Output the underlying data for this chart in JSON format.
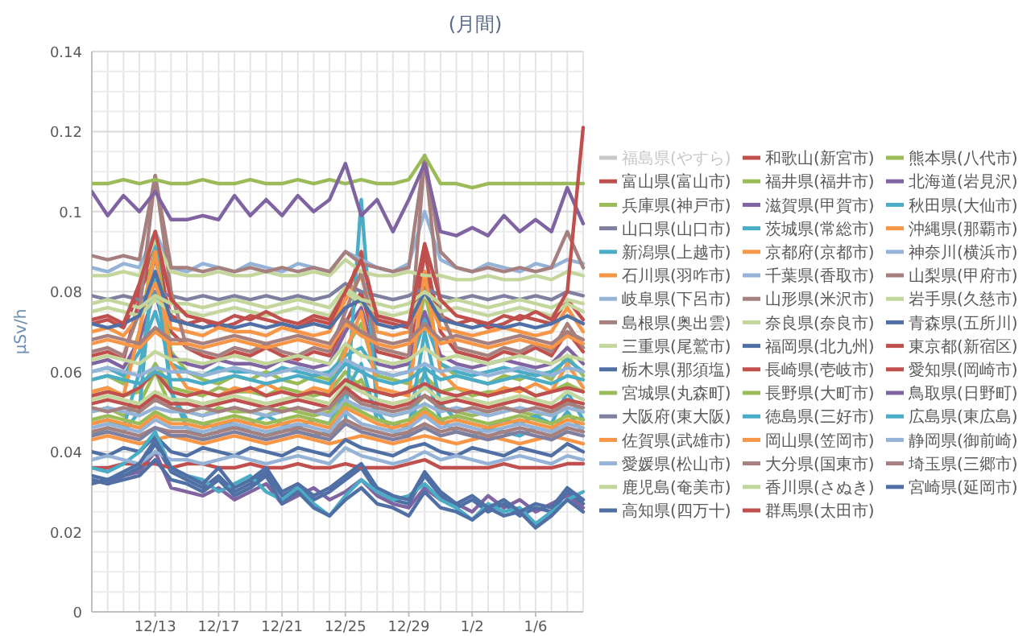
{
  "chart_data": {
    "type": "line",
    "title": "(月間)",
    "ylabel": "μSv/h",
    "ylim": [
      0,
      0.14
    ],
    "yticks": [
      0,
      0.02,
      0.04,
      0.06,
      0.08,
      0.1,
      0.12,
      0.14
    ],
    "categories": [
      null,
      null,
      null,
      null,
      "12/13",
      null,
      null,
      null,
      "12/17",
      null,
      null,
      null,
      "12/21",
      null,
      null,
      null,
      "12/25",
      null,
      null,
      null,
      "12/29",
      null,
      null,
      null,
      "1/2",
      null,
      null,
      null,
      "1/6",
      null,
      null,
      null
    ],
    "grid": true,
    "legend": "right",
    "line_style": "solid",
    "series": [
      {
        "name": "福島県(やすら)",
        "color": "#c8c8c8",
        "values": [
          null,
          null,
          null,
          null,
          null,
          null,
          null,
          null,
          null,
          null,
          null,
          null,
          null,
          null,
          null,
          null,
          null,
          null,
          null,
          null,
          null,
          null,
          null,
          null,
          null,
          null,
          null,
          null,
          null,
          null,
          null,
          null
        ]
      },
      {
        "name": "和歌山(新宮市)",
        "color": "#c0504d",
        "values": [
          0.072,
          0.073,
          0.071,
          0.08,
          0.088,
          0.074,
          0.072,
          0.073,
          0.071,
          0.072,
          0.074,
          0.073,
          0.072,
          0.071,
          0.073,
          0.072,
          0.078,
          0.09,
          0.073,
          0.072,
          0.071,
          0.085,
          0.074,
          0.072,
          0.073,
          0.071,
          0.072,
          0.074,
          0.073,
          0.072,
          0.078,
          0.073
        ]
      },
      {
        "name": "熊本県(八代市)",
        "color": "#9bbb59",
        "values": [
          0.055,
          0.056,
          0.054,
          0.055,
          0.062,
          0.056,
          0.055,
          0.054,
          0.056,
          0.055,
          0.055,
          0.054,
          0.056,
          0.055,
          0.054,
          0.055,
          0.06,
          0.056,
          0.055,
          0.054,
          0.055,
          0.059,
          0.055,
          0.056,
          0.054,
          0.055,
          0.055,
          0.056,
          0.054,
          0.055,
          0.057,
          0.055
        ]
      },
      {
        "name": "富山県(富山市)",
        "color": "#c0504d",
        "values": [
          0.064,
          0.065,
          0.063,
          0.078,
          0.095,
          0.07,
          0.066,
          0.064,
          0.063,
          0.065,
          0.064,
          0.066,
          0.064,
          0.063,
          0.065,
          0.064,
          0.072,
          0.08,
          0.065,
          0.064,
          0.063,
          0.09,
          0.07,
          0.065,
          0.064,
          0.063,
          0.065,
          0.064,
          0.066,
          0.064,
          0.07,
          0.065
        ]
      },
      {
        "name": "福井県(福井市)",
        "color": "#9bbb59",
        "values": [
          0.058,
          0.059,
          0.057,
          0.07,
          0.092,
          0.065,
          0.06,
          0.058,
          0.057,
          0.059,
          0.058,
          0.06,
          0.058,
          0.057,
          0.059,
          0.058,
          0.066,
          0.072,
          0.059,
          0.058,
          0.057,
          0.08,
          0.062,
          0.059,
          0.058,
          0.057,
          0.059,
          0.058,
          0.06,
          0.058,
          0.064,
          0.059
        ]
      },
      {
        "name": "北海道(岩見沢)",
        "color": "#8064a2",
        "values": [
          0.033,
          0.032,
          0.034,
          0.035,
          0.04,
          0.031,
          0.03,
          0.029,
          0.031,
          0.028,
          0.03,
          0.032,
          0.027,
          0.029,
          0.031,
          0.028,
          0.03,
          0.033,
          0.029,
          0.027,
          0.026,
          0.031,
          0.028,
          0.027,
          0.025,
          0.029,
          0.026,
          0.028,
          0.025,
          0.027,
          0.029,
          0.026
        ]
      },
      {
        "name": "兵庫県(神戸市)",
        "color": "#9bbb59",
        "values": [
          0.05,
          0.051,
          0.049,
          0.052,
          0.06,
          0.051,
          0.05,
          0.049,
          0.051,
          0.05,
          0.05,
          0.049,
          0.051,
          0.05,
          0.049,
          0.05,
          0.055,
          0.058,
          0.05,
          0.049,
          0.05,
          0.054,
          0.051,
          0.05,
          0.049,
          0.05,
          0.051,
          0.05,
          0.049,
          0.05,
          0.053,
          0.05
        ]
      },
      {
        "name": "滋賀県(甲賀市)",
        "color": "#8064a2",
        "values": [
          0.062,
          0.063,
          0.061,
          0.068,
          0.08,
          0.064,
          0.062,
          0.061,
          0.063,
          0.062,
          0.062,
          0.061,
          0.063,
          0.062,
          0.061,
          0.062,
          0.07,
          0.076,
          0.062,
          0.061,
          0.062,
          0.075,
          0.064,
          0.062,
          0.061,
          0.062,
          0.063,
          0.062,
          0.061,
          0.062,
          0.066,
          0.062
        ]
      },
      {
        "name": "秋田県(大仙市)",
        "color": "#4bacc6",
        "values": [
          0.044,
          0.046,
          0.045,
          0.05,
          0.093,
          0.055,
          0.046,
          0.044,
          0.045,
          0.047,
          0.045,
          0.044,
          0.046,
          0.045,
          0.044,
          0.045,
          0.048,
          0.103,
          0.05,
          0.045,
          0.044,
          0.06,
          0.048,
          0.045,
          0.044,
          0.046,
          0.045,
          0.044,
          0.046,
          0.045,
          0.05,
          0.045
        ]
      },
      {
        "name": "山口県(山口市)",
        "color": "#7f7f9f",
        "values": [
          0.079,
          0.078,
          0.079,
          0.078,
          0.08,
          0.079,
          0.078,
          0.079,
          0.078,
          0.079,
          0.078,
          0.079,
          0.078,
          0.079,
          0.078,
          0.079,
          0.082,
          0.08,
          0.079,
          0.078,
          0.079,
          0.081,
          0.079,
          0.078,
          0.079,
          0.078,
          0.079,
          0.078,
          0.079,
          0.078,
          0.08,
          0.079
        ]
      },
      {
        "name": "茨城県(常総市)",
        "color": "#4bacc6",
        "values": [
          0.06,
          0.061,
          0.059,
          0.065,
          0.075,
          0.062,
          0.06,
          0.059,
          0.061,
          0.06,
          0.06,
          0.059,
          0.061,
          0.06,
          0.059,
          0.06,
          0.064,
          0.066,
          0.06,
          0.059,
          0.06,
          0.073,
          0.062,
          0.06,
          0.059,
          0.06,
          0.061,
          0.06,
          0.059,
          0.06,
          0.063,
          0.06
        ]
      },
      {
        "name": "沖縄県(那覇市)",
        "color": "#f79646",
        "values": [
          0.043,
          0.044,
          0.043,
          0.042,
          0.043,
          0.044,
          0.043,
          0.042,
          0.043,
          0.044,
          0.043,
          0.042,
          0.043,
          0.044,
          0.043,
          0.042,
          0.043,
          0.044,
          0.043,
          0.042,
          0.043,
          0.044,
          0.043,
          0.042,
          0.043,
          0.044,
          0.043,
          0.042,
          0.043,
          0.044,
          0.043,
          0.042
        ]
      },
      {
        "name": "新潟県(上越市)",
        "color": "#4bacc6",
        "values": [
          0.047,
          0.048,
          0.046,
          0.06,
          0.085,
          0.055,
          0.048,
          0.047,
          0.046,
          0.048,
          0.047,
          0.049,
          0.047,
          0.046,
          0.048,
          0.047,
          0.055,
          0.062,
          0.048,
          0.047,
          0.046,
          0.07,
          0.052,
          0.048,
          0.047,
          0.046,
          0.048,
          0.047,
          0.049,
          0.047,
          0.055,
          0.048
        ]
      },
      {
        "name": "京都府(京都市)",
        "color": "#f79646",
        "values": [
          0.07,
          0.071,
          0.069,
          0.074,
          0.082,
          0.071,
          0.07,
          0.069,
          0.071,
          0.07,
          0.07,
          0.069,
          0.071,
          0.07,
          0.069,
          0.07,
          0.078,
          0.084,
          0.07,
          0.069,
          0.07,
          0.08,
          0.071,
          0.07,
          0.069,
          0.07,
          0.071,
          0.07,
          0.069,
          0.07,
          0.076,
          0.07
        ]
      },
      {
        "name": "神奈川(横浜市)",
        "color": "#95b3d7",
        "values": [
          0.05,
          0.051,
          0.05,
          0.049,
          0.051,
          0.05,
          0.05,
          0.049,
          0.05,
          0.051,
          0.05,
          0.049,
          0.05,
          0.051,
          0.05,
          0.049,
          0.053,
          0.051,
          0.05,
          0.049,
          0.05,
          0.052,
          0.05,
          0.051,
          0.05,
          0.049,
          0.05,
          0.051,
          0.05,
          0.049,
          0.051,
          0.05
        ]
      },
      {
        "name": "石川県(羽咋市)",
        "color": "#f79646",
        "values": [
          0.055,
          0.056,
          0.054,
          0.07,
          0.09,
          0.062,
          0.056,
          0.055,
          0.054,
          0.056,
          0.055,
          0.057,
          0.055,
          0.054,
          0.056,
          0.055,
          0.065,
          0.075,
          0.056,
          0.055,
          0.054,
          0.085,
          0.06,
          0.056,
          0.055,
          0.054,
          0.056,
          0.055,
          0.057,
          0.055,
          0.062,
          0.056
        ]
      },
      {
        "name": "千葉県(香取市)",
        "color": "#95b3d7",
        "values": [
          0.06,
          0.061,
          0.06,
          0.059,
          0.061,
          0.06,
          0.06,
          0.059,
          0.06,
          0.061,
          0.06,
          0.059,
          0.06,
          0.061,
          0.06,
          0.059,
          0.063,
          0.061,
          0.06,
          0.059,
          0.06,
          0.062,
          0.06,
          0.061,
          0.06,
          0.059,
          0.06,
          0.061,
          0.06,
          0.059,
          0.061,
          0.06
        ]
      },
      {
        "name": "山梨県(甲府市)",
        "color": "#a5807f",
        "values": [
          0.045,
          0.046,
          0.045,
          0.044,
          0.046,
          0.045,
          0.045,
          0.044,
          0.045,
          0.046,
          0.045,
          0.044,
          0.045,
          0.046,
          0.045,
          0.044,
          0.048,
          0.046,
          0.045,
          0.044,
          0.045,
          0.047,
          0.045,
          0.046,
          0.045,
          0.044,
          0.045,
          0.046,
          0.045,
          0.044,
          0.046,
          0.045
        ]
      },
      {
        "name": "岐阜県(下呂市)",
        "color": "#95b3d7",
        "values": [
          0.086,
          0.085,
          0.087,
          0.086,
          0.095,
          0.086,
          0.085,
          0.087,
          0.086,
          0.085,
          0.087,
          0.086,
          0.085,
          0.087,
          0.086,
          0.085,
          0.09,
          0.088,
          0.086,
          0.085,
          0.087,
          0.1,
          0.088,
          0.086,
          0.085,
          0.087,
          0.086,
          0.085,
          0.087,
          0.086,
          0.088,
          0.087
        ]
      },
      {
        "name": "山形県(米沢市)",
        "color": "#a5807f",
        "values": [
          0.065,
          0.066,
          0.064,
          0.075,
          0.109,
          0.08,
          0.066,
          0.065,
          0.064,
          0.066,
          0.065,
          0.067,
          0.065,
          0.064,
          0.066,
          0.065,
          0.075,
          0.085,
          0.066,
          0.065,
          0.064,
          0.114,
          0.075,
          0.066,
          0.065,
          0.064,
          0.066,
          0.065,
          0.067,
          0.065,
          0.072,
          0.066
        ]
      },
      {
        "name": "岩手県(久慈市)",
        "color": "#c3d69b",
        "values": [
          0.084,
          0.084,
          0.085,
          0.084,
          0.093,
          0.085,
          0.084,
          0.084,
          0.085,
          0.084,
          0.084,
          0.085,
          0.084,
          0.084,
          0.085,
          0.084,
          0.088,
          0.085,
          0.084,
          0.084,
          0.085,
          0.084,
          0.084,
          0.083,
          0.083,
          0.084,
          0.083,
          0.083,
          0.084,
          0.083,
          0.085,
          0.084
        ]
      },
      {
        "name": "島根県(奥出雲)",
        "color": "#a5807f",
        "values": [
          0.089,
          0.088,
          0.089,
          0.088,
          0.109,
          0.086,
          0.086,
          0.085,
          0.086,
          0.085,
          0.086,
          0.085,
          0.086,
          0.085,
          0.086,
          0.085,
          0.09,
          0.087,
          0.086,
          0.085,
          0.086,
          0.114,
          0.09,
          0.086,
          0.085,
          0.086,
          0.085,
          0.086,
          0.085,
          0.086,
          0.095,
          0.086
        ]
      },
      {
        "name": "奈良県(奈良市)",
        "color": "#c3d69b",
        "values": [
          0.053,
          0.054,
          0.053,
          0.052,
          0.055,
          0.053,
          0.053,
          0.052,
          0.053,
          0.054,
          0.053,
          0.052,
          0.053,
          0.054,
          0.053,
          0.052,
          0.057,
          0.055,
          0.053,
          0.052,
          0.053,
          0.056,
          0.053,
          0.054,
          0.053,
          0.052,
          0.053,
          0.054,
          0.053,
          0.052,
          0.055,
          0.053
        ]
      },
      {
        "name": "青森県(五所川)",
        "color": "#4f6fa5",
        "values": [
          0.032,
          0.033,
          0.034,
          0.036,
          0.042,
          0.035,
          0.033,
          0.031,
          0.034,
          0.03,
          0.032,
          0.035,
          0.029,
          0.031,
          0.028,
          0.03,
          0.033,
          0.036,
          0.03,
          0.028,
          0.027,
          0.034,
          0.029,
          0.026,
          0.028,
          0.025,
          0.027,
          0.024,
          0.026,
          0.025,
          0.03,
          0.027
        ]
      },
      {
        "name": "三重県(尾鷲市)",
        "color": "#c3d69b",
        "values": [
          0.075,
          0.076,
          0.075,
          0.074,
          0.078,
          0.075,
          0.075,
          0.074,
          0.075,
          0.076,
          0.075,
          0.074,
          0.075,
          0.076,
          0.075,
          0.074,
          0.08,
          0.077,
          0.075,
          0.074,
          0.075,
          0.079,
          0.075,
          0.076,
          0.075,
          0.074,
          0.075,
          0.076,
          0.075,
          0.074,
          0.077,
          0.075
        ]
      },
      {
        "name": "福岡県(北九州)",
        "color": "#4f6fa5",
        "values": [
          0.04,
          0.039,
          0.041,
          0.04,
          0.044,
          0.04,
          0.039,
          0.041,
          0.04,
          0.039,
          0.041,
          0.04,
          0.039,
          0.041,
          0.04,
          0.039,
          0.043,
          0.041,
          0.04,
          0.039,
          0.041,
          0.042,
          0.04,
          0.039,
          0.041,
          0.04,
          0.039,
          0.041,
          0.04,
          0.039,
          0.042,
          0.04
        ]
      },
      {
        "name": "東京都(新宿区)",
        "color": "#c0504d",
        "values": [
          0.054,
          0.055,
          0.054,
          0.056,
          0.06,
          0.055,
          0.054,
          0.055,
          0.054,
          0.055,
          0.056,
          0.054,
          0.055,
          0.054,
          0.055,
          0.054,
          0.058,
          0.056,
          0.055,
          0.054,
          0.055,
          0.057,
          0.055,
          0.054,
          0.055,
          0.054,
          0.055,
          0.056,
          0.054,
          0.055,
          0.056,
          0.055
        ]
      },
      {
        "name": "栃木県(那須塩)",
        "color": "#4f6fa5",
        "values": [
          0.072,
          0.071,
          0.072,
          0.074,
          0.085,
          0.073,
          0.072,
          0.071,
          0.072,
          0.071,
          0.072,
          0.071,
          0.072,
          0.071,
          0.072,
          0.071,
          0.076,
          0.078,
          0.072,
          0.071,
          0.072,
          0.08,
          0.073,
          0.072,
          0.071,
          0.072,
          0.071,
          0.072,
          0.071,
          0.072,
          0.074,
          0.072
        ]
      },
      {
        "name": "長崎県(壱岐市)",
        "color": "#c0504d",
        "values": [
          0.052,
          0.053,
          0.052,
          0.051,
          0.054,
          0.052,
          0.052,
          0.051,
          0.052,
          0.053,
          0.052,
          0.051,
          0.052,
          0.053,
          0.052,
          0.051,
          0.056,
          0.053,
          0.052,
          0.051,
          0.052,
          0.054,
          0.052,
          0.053,
          0.052,
          0.051,
          0.052,
          0.053,
          0.052,
          0.051,
          0.053,
          0.052
        ]
      },
      {
        "name": "愛知県(岡崎市)",
        "color": "#c0504d",
        "values": [
          0.036,
          0.036,
          0.037,
          0.037,
          0.037,
          0.036,
          0.037,
          0.037,
          0.036,
          0.036,
          0.037,
          0.036,
          0.036,
          0.037,
          0.036,
          0.036,
          0.037,
          0.036,
          0.036,
          0.036,
          0.037,
          0.038,
          0.036,
          0.036,
          0.036,
          0.036,
          0.037,
          0.036,
          0.036,
          0.036,
          0.037,
          0.037
        ]
      },
      {
        "name": "宮城県(丸森町)",
        "color": "#9bbb59",
        "values": [
          0.107,
          0.107,
          0.108,
          0.107,
          0.108,
          0.107,
          0.107,
          0.108,
          0.107,
          0.107,
          0.108,
          0.107,
          0.107,
          0.108,
          0.107,
          0.108,
          0.107,
          0.108,
          0.107,
          0.107,
          0.108,
          0.114,
          0.107,
          0.107,
          0.106,
          0.107,
          0.107,
          0.107,
          0.107,
          0.107,
          0.107,
          0.107
        ]
      },
      {
        "name": "長野県(大町市)",
        "color": "#9bbb59",
        "values": [
          0.048,
          0.049,
          0.048,
          0.047,
          0.05,
          0.048,
          0.048,
          0.047,
          0.048,
          0.049,
          0.048,
          0.047,
          0.048,
          0.049,
          0.048,
          0.047,
          0.052,
          0.05,
          0.048,
          0.047,
          0.048,
          0.051,
          0.048,
          0.049,
          0.048,
          0.047,
          0.048,
          0.049,
          0.048,
          0.047,
          0.049,
          0.048
        ]
      },
      {
        "name": "鳥取県(日野町)",
        "color": "#8064a2",
        "values": [
          0.105,
          0.099,
          0.104,
          0.1,
          0.105,
          0.098,
          0.098,
          0.099,
          0.098,
          0.104,
          0.099,
          0.103,
          0.099,
          0.104,
          0.1,
          0.103,
          0.112,
          0.099,
          0.103,
          0.095,
          0.103,
          0.112,
          0.095,
          0.094,
          0.096,
          0.094,
          0.099,
          0.095,
          0.098,
          0.095,
          0.106,
          0.097
        ]
      },
      {
        "name": "大阪府(東大阪)",
        "color": "#7f7f9f",
        "values": [
          0.044,
          0.045,
          0.044,
          0.043,
          0.046,
          0.044,
          0.044,
          0.043,
          0.044,
          0.045,
          0.044,
          0.043,
          0.044,
          0.045,
          0.044,
          0.043,
          0.047,
          0.045,
          0.044,
          0.043,
          0.044,
          0.046,
          0.044,
          0.045,
          0.044,
          0.043,
          0.044,
          0.045,
          0.044,
          0.043,
          0.045,
          0.044
        ]
      },
      {
        "name": "徳島県(三好市)",
        "color": "#4bacc6",
        "values": [
          0.036,
          0.035,
          0.037,
          0.04,
          0.045,
          0.036,
          0.034,
          0.033,
          0.03,
          0.032,
          0.034,
          0.03,
          0.028,
          0.031,
          0.027,
          0.024,
          0.029,
          0.033,
          0.03,
          0.028,
          0.029,
          0.032,
          0.028,
          0.026,
          0.023,
          0.027,
          0.025,
          0.026,
          0.022,
          0.025,
          0.028,
          0.03
        ]
      },
      {
        "name": "広島県(東広島)",
        "color": "#4bacc6",
        "values": [
          0.058,
          0.059,
          0.058,
          0.057,
          0.06,
          0.058,
          0.058,
          0.057,
          0.058,
          0.059,
          0.058,
          0.057,
          0.058,
          0.059,
          0.058,
          0.057,
          0.062,
          0.06,
          0.058,
          0.057,
          0.058,
          0.061,
          0.058,
          0.059,
          0.058,
          0.057,
          0.058,
          0.059,
          0.058,
          0.057,
          0.059,
          0.058
        ]
      },
      {
        "name": "佐賀県(武雄市)",
        "color": "#f79646",
        "values": [
          0.067,
          0.068,
          0.067,
          0.066,
          0.07,
          0.067,
          0.067,
          0.066,
          0.067,
          0.068,
          0.067,
          0.066,
          0.067,
          0.068,
          0.067,
          0.066,
          0.072,
          0.069,
          0.067,
          0.066,
          0.067,
          0.071,
          0.067,
          0.068,
          0.067,
          0.066,
          0.067,
          0.068,
          0.067,
          0.066,
          0.069,
          0.067
        ]
      },
      {
        "name": "岡山県(笠岡市)",
        "color": "#f79646",
        "values": [
          0.047,
          0.048,
          0.047,
          0.046,
          0.049,
          0.047,
          0.047,
          0.046,
          0.047,
          0.048,
          0.047,
          0.046,
          0.047,
          0.048,
          0.047,
          0.046,
          0.051,
          0.049,
          0.047,
          0.046,
          0.047,
          0.05,
          0.047,
          0.048,
          0.047,
          0.046,
          0.047,
          0.048,
          0.047,
          0.046,
          0.048,
          0.047
        ]
      },
      {
        "name": "静岡県(御前崎)",
        "color": "#95b3d7",
        "values": [
          0.038,
          0.039,
          0.038,
          0.037,
          0.04,
          0.038,
          0.038,
          0.037,
          0.038,
          0.039,
          0.038,
          0.037,
          0.038,
          0.039,
          0.038,
          0.037,
          0.041,
          0.039,
          0.038,
          0.037,
          0.038,
          0.04,
          0.038,
          0.039,
          0.038,
          0.037,
          0.038,
          0.039,
          0.038,
          0.037,
          0.039,
          0.038
        ]
      },
      {
        "name": "愛媛県(松山市)",
        "color": "#95b3d7",
        "values": [
          0.046,
          0.047,
          0.046,
          0.045,
          0.048,
          0.046,
          0.046,
          0.045,
          0.046,
          0.047,
          0.046,
          0.045,
          0.046,
          0.047,
          0.046,
          0.045,
          0.05,
          0.047,
          0.046,
          0.045,
          0.046,
          0.049,
          0.046,
          0.047,
          0.046,
          0.045,
          0.046,
          0.047,
          0.046,
          0.045,
          0.047,
          0.046
        ]
      },
      {
        "name": "大分県(国東市)",
        "color": "#a5807f",
        "values": [
          0.051,
          0.05,
          0.051,
          0.05,
          0.053,
          0.051,
          0.05,
          0.051,
          0.05,
          0.051,
          0.05,
          0.051,
          0.05,
          0.051,
          0.05,
          0.051,
          0.055,
          0.052,
          0.051,
          0.05,
          0.051,
          0.054,
          0.051,
          0.05,
          0.051,
          0.05,
          0.051,
          0.05,
          0.051,
          0.05,
          0.052,
          0.051
        ]
      },
      {
        "name": "埼玉県(三郷市)",
        "color": "#a5807f",
        "values": [
          0.068,
          0.069,
          0.068,
          0.067,
          0.071,
          0.068,
          0.068,
          0.067,
          0.068,
          0.069,
          0.068,
          0.067,
          0.068,
          0.069,
          0.068,
          0.067,
          0.073,
          0.07,
          0.068,
          0.067,
          0.068,
          0.072,
          0.068,
          0.069,
          0.068,
          0.067,
          0.068,
          0.069,
          0.068,
          0.067,
          0.07,
          0.068
        ]
      },
      {
        "name": "鹿児島(奄美市)",
        "color": "#c3d69b",
        "values": [
          0.077,
          0.078,
          0.077,
          0.076,
          0.079,
          0.077,
          0.077,
          0.076,
          0.077,
          0.078,
          0.077,
          0.076,
          0.077,
          0.078,
          0.077,
          0.076,
          0.081,
          0.078,
          0.077,
          0.076,
          0.077,
          0.08,
          0.077,
          0.078,
          0.077,
          0.076,
          0.077,
          0.078,
          0.077,
          0.076,
          0.078,
          0.077
        ]
      },
      {
        "name": "香川県(さぬき)",
        "color": "#c3d69b",
        "values": [
          0.063,
          0.064,
          0.063,
          0.062,
          0.065,
          0.063,
          0.063,
          0.062,
          0.063,
          0.064,
          0.063,
          0.062,
          0.063,
          0.064,
          0.063,
          0.062,
          0.067,
          0.064,
          0.063,
          0.062,
          0.063,
          0.066,
          0.063,
          0.064,
          0.063,
          0.062,
          0.063,
          0.064,
          0.063,
          0.062,
          0.064,
          0.063
        ]
      },
      {
        "name": "宮崎県(延岡市)",
        "color": "#4f6fa5",
        "values": [
          0.033,
          0.032,
          0.033,
          0.034,
          0.038,
          0.033,
          0.032,
          0.03,
          0.033,
          0.029,
          0.031,
          0.034,
          0.027,
          0.03,
          0.026,
          0.024,
          0.028,
          0.031,
          0.027,
          0.026,
          0.024,
          0.03,
          0.026,
          0.025,
          0.023,
          0.026,
          0.024,
          0.025,
          0.021,
          0.024,
          0.028,
          0.025
        ]
      },
      {
        "name": "高知県(四万十)",
        "color": "#4f6fa5",
        "values": [
          0.034,
          0.033,
          0.035,
          0.037,
          0.043,
          0.036,
          0.034,
          0.032,
          0.036,
          0.031,
          0.033,
          0.036,
          0.03,
          0.032,
          0.029,
          0.031,
          0.034,
          0.037,
          0.031,
          0.029,
          0.028,
          0.035,
          0.03,
          0.027,
          0.029,
          0.026,
          0.028,
          0.025,
          0.027,
          0.026,
          0.031,
          0.028
        ]
      },
      {
        "name": "群馬県(太田市)",
        "color": "#c0504d",
        "values": [
          0.073,
          0.074,
          0.072,
          0.082,
          0.095,
          0.078,
          0.074,
          0.073,
          0.072,
          0.074,
          0.073,
          0.075,
          0.073,
          0.072,
          0.074,
          0.073,
          0.08,
          0.088,
          0.074,
          0.073,
          0.072,
          0.092,
          0.078,
          0.074,
          0.073,
          0.072,
          0.074,
          0.073,
          0.075,
          0.073,
          0.08,
          0.121
        ]
      }
    ]
  }
}
